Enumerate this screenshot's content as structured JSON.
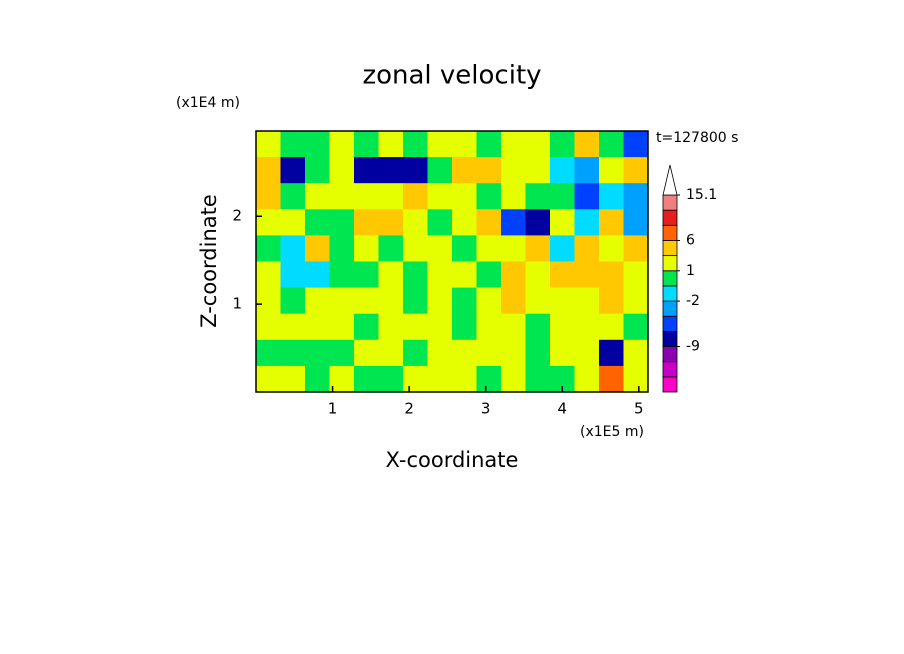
{
  "chart_data": {
    "type": "contour",
    "title": "zonal velocity",
    "xlabel": "X-coordinate",
    "ylabel": "Z-coordinate",
    "xunit": "(x1E5 m)",
    "yunit": "(x1E4 m)",
    "annotation": "t=127800 s",
    "xlim": [
      0,
      5.12
    ],
    "ylim": [
      0,
      2.97
    ],
    "xticks": [
      1,
      2,
      3,
      4,
      5
    ],
    "yticks": [
      1,
      2
    ],
    "z": [
      [
        2,
        -1,
        0,
        2,
        0,
        1,
        -1,
        1,
        2,
        0,
        2,
        1,
        -1,
        3,
        0,
        -6
      ],
      [
        3,
        -7,
        0,
        1,
        -7,
        -9,
        -8,
        0,
        3,
        4,
        1,
        2,
        -2,
        -3,
        1,
        4
      ],
      [
        3,
        0,
        1,
        2,
        1,
        2,
        4,
        2,
        1,
        0,
        1,
        -1,
        -1,
        -5,
        -2,
        -4
      ],
      [
        2,
        1,
        -1,
        0,
        4,
        3,
        1,
        0,
        2,
        3,
        -6,
        -7,
        1,
        -2,
        3,
        -4
      ],
      [
        -1,
        -2,
        3,
        0,
        1,
        0,
        1,
        2,
        0,
        2,
        1,
        3,
        -2,
        4,
        1,
        3
      ],
      [
        1,
        -2,
        -2,
        0,
        0,
        1,
        0,
        1,
        2,
        0,
        3,
        1,
        3,
        3,
        4,
        2
      ],
      [
        2,
        0,
        1,
        2,
        2,
        2,
        0,
        1,
        0,
        1,
        3,
        1,
        2,
        2,
        3,
        2
      ],
      [
        1,
        2,
        2,
        1,
        0,
        2,
        2,
        1,
        0,
        1,
        2,
        0,
        1,
        2,
        1,
        0
      ],
      [
        0,
        0,
        0,
        0,
        1,
        1,
        0,
        2,
        2,
        1,
        1,
        0,
        2,
        1,
        -9,
        2
      ],
      [
        2,
        1,
        0,
        1,
        0,
        0,
        1,
        2,
        1,
        0,
        1,
        0,
        0,
        1,
        6,
        1
      ]
    ],
    "colorbar": {
      "levels": [
        -20,
        -15,
        -12,
        -9,
        -6,
        -4,
        -2,
        -1,
        1,
        3,
        6,
        9,
        12,
        15.1
      ],
      "colors": [
        "#ff00c8",
        "#c800c8",
        "#8c00b4",
        "#0000a0",
        "#0040ff",
        "#00a0ff",
        "#00dcff",
        "#00e650",
        "#e6ff00",
        "#ffc800",
        "#ff6400",
        "#e61e1e",
        "#f08080"
      ],
      "above_color": "#ffffff",
      "ticks": [
        15.1,
        6,
        1,
        -2,
        -9
      ]
    }
  }
}
